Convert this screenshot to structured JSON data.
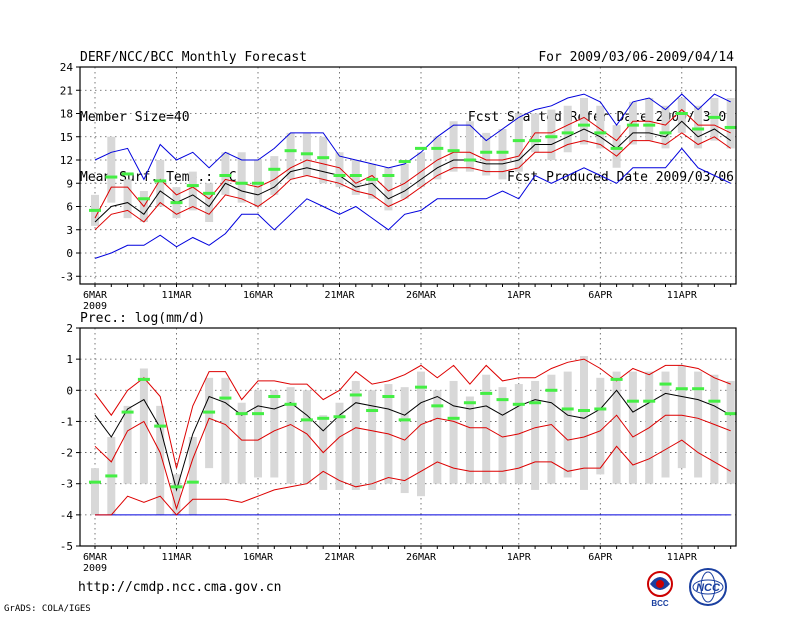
{
  "header": {
    "title": "DERF/NCC/BCC Monthly Forecast",
    "member_size": "Member Size=40",
    "variable": "Mean Surf. Temp.: °C",
    "period": "For 2009/03/06-2009/04/14",
    "started": "Fcst Started Refer Date 2009/03/05",
    "produced": "Fcst Produced Date 2009/03/06"
  },
  "footer": {
    "url": "http://cmdp.ncc.cma.gov.cn",
    "grads": "GrADS: COLA/IGES",
    "logo_bcc": "BCC",
    "logo_ncc": "NCC"
  },
  "colors": {
    "max_min": "#0000dd",
    "mean": "#000000",
    "spread": "#dd0000",
    "box": "#d8d8d8",
    "median": "#44ee44",
    "grid": "#555555"
  },
  "chart_data": [
    {
      "type": "line",
      "title": "Mean Surf. Temp.: °C",
      "ylim": [
        -4,
        24
      ],
      "yticks": [
        "24",
        "21",
        "18",
        "15",
        "12",
        "9",
        "6",
        "3",
        "0",
        "-3"
      ],
      "ytick_values": [
        24,
        21,
        18,
        15,
        12,
        9,
        6,
        3,
        0,
        -3
      ],
      "xtick_labels": [
        "6MAR",
        "11MAR",
        "16MAR",
        "21MAR",
        "26MAR",
        "1APR",
        "6APR",
        "11APR"
      ],
      "xtick_days": [
        0,
        5,
        10,
        15,
        20,
        26,
        31,
        36
      ],
      "year_label": "2009",
      "series": [
        {
          "name": "max",
          "values": [
            -0.7,
            0,
            1,
            1,
            2.3,
            0.8,
            2,
            1,
            2.5,
            5,
            5,
            3,
            5,
            7,
            6,
            5,
            6,
            4.5,
            3,
            5,
            5.5,
            7,
            7,
            7,
            7,
            8,
            7,
            10,
            9,
            10,
            11,
            10,
            9,
            11,
            11,
            11,
            13.5,
            11,
            10,
            9
          ]
        },
        {
          "name": "upper",
          "values": [
            4.5,
            8.5,
            8.5,
            6,
            9.5,
            7.5,
            8.5,
            7,
            9.5,
            9,
            8.5,
            9.5,
            11,
            12,
            11.5,
            11,
            9,
            10,
            8,
            9,
            10.5,
            12,
            13,
            13,
            12,
            12,
            12.5,
            15.5,
            15.5,
            16.5,
            17.5,
            16,
            14.5,
            17,
            17,
            16.5,
            18.5,
            16.5,
            16.5,
            15.5
          ]
        },
        {
          "name": "mean",
          "values": [
            4,
            6,
            6.5,
            5,
            8,
            6.5,
            7.5,
            6,
            9,
            8,
            7.5,
            8.5,
            10.5,
            11,
            10.5,
            10,
            8.5,
            9,
            7,
            8,
            9.5,
            11,
            12,
            12,
            11.5,
            11.5,
            12,
            14,
            14,
            15,
            16,
            15,
            13.5,
            15.5,
            15.5,
            15,
            17,
            15,
            16,
            14.5
          ]
        },
        {
          "name": "lower",
          "values": [
            3,
            5,
            5.5,
            4,
            6.5,
            5,
            6,
            5,
            7.5,
            7,
            6,
            7.5,
            9.5,
            10,
            9.5,
            9,
            8,
            7.5,
            6,
            7,
            8.5,
            10,
            11,
            11,
            10.5,
            10.5,
            11,
            13,
            13,
            14,
            14.5,
            14,
            12.5,
            14.5,
            14.5,
            14,
            15.5,
            14,
            15,
            13.5
          ]
        },
        {
          "name": "min",
          "values": [
            12,
            13,
            13.5,
            9.5,
            14,
            12,
            13,
            11,
            13,
            12,
            12,
            13.5,
            15.5,
            15.5,
            15.5,
            12.5,
            12,
            11.5,
            11,
            11.5,
            13,
            15,
            16.5,
            16.5,
            14.5,
            16,
            17.5,
            18.5,
            19,
            20,
            20.5,
            19.5,
            16.5,
            19.5,
            20,
            18.5,
            20.5,
            18.5,
            20.5,
            19.5
          ]
        }
      ],
      "median": [
        5.5,
        9.8,
        10.2,
        7,
        9.3,
        6.5,
        8.7,
        7.7,
        10,
        9,
        9,
        10.8,
        13.2,
        12.8,
        12.3,
        10,
        10,
        9.5,
        10,
        11.8,
        13.5,
        13.5,
        13.2,
        12,
        13,
        13,
        14.5,
        14.5,
        15,
        15.5,
        16.5,
        15.5,
        13.5,
        16.5,
        16.5,
        15.5,
        18,
        16,
        17.5,
        16.2
      ],
      "box_low": [
        3.5,
        6.5,
        4.5,
        4,
        6,
        4.5,
        5.5,
        4,
        7.5,
        6.5,
        6,
        7.5,
        9.5,
        10,
        9,
        8.5,
        7.5,
        7,
        5.5,
        7,
        8.5,
        9.5,
        10.5,
        10.5,
        10,
        9.5,
        10.5,
        13,
        12,
        13,
        14,
        13.5,
        11,
        14,
        14.5,
        13.5,
        15.5,
        13.5,
        14.5,
        13.5
      ],
      "box_high": [
        7.5,
        15,
        9.5,
        8,
        12,
        8.5,
        10.5,
        9,
        13,
        13,
        12,
        12.5,
        15.5,
        15.5,
        15,
        13,
        12,
        11.5,
        11,
        11.5,
        13,
        15,
        17,
        17,
        15.5,
        16,
        18,
        18,
        18.5,
        19,
        20,
        19,
        16.5,
        19.5,
        20,
        19,
        20,
        19,
        20,
        20
      ]
    },
    {
      "type": "line",
      "title": "Prec.: log(mm/d)",
      "ylim": [
        -5,
        2
      ],
      "yticks": [
        "2",
        "1",
        "0",
        "-1",
        "-2",
        "-3",
        "-4",
        "-5"
      ],
      "ytick_values": [
        2,
        1,
        0,
        -1,
        -2,
        -3,
        -4,
        -5
      ],
      "xtick_labels": [
        "6MAR",
        "11MAR",
        "16MAR",
        "21MAR",
        "26MAR",
        "1APR",
        "6APR",
        "11APR"
      ],
      "xtick_days": [
        0,
        5,
        10,
        15,
        20,
        26,
        31,
        36
      ],
      "year_label": "2009",
      "floor": -4,
      "series": [
        {
          "name": "upper",
          "values": [
            -0.1,
            -0.8,
            0,
            0.4,
            -0.2,
            -2.5,
            -0.5,
            0.6,
            0.6,
            -0.3,
            0.3,
            0.3,
            0.2,
            0.2,
            -0.3,
            0,
            0.6,
            0.2,
            0.3,
            0.5,
            0.8,
            0.4,
            0.8,
            0.2,
            0.8,
            0.3,
            0.4,
            0.4,
            0.7,
            0.9,
            1,
            0.7,
            0.3,
            0.7,
            0.5,
            0.8,
            0.8,
            0.7,
            0.4,
            0.2
          ]
        },
        {
          "name": "mean",
          "values": [
            -0.8,
            -1.5,
            -0.6,
            -0.3,
            -1.2,
            -3.2,
            -1.4,
            -0.2,
            -0.4,
            -0.8,
            -0.5,
            -0.6,
            -0.4,
            -0.8,
            -1.3,
            -0.8,
            -0.4,
            -0.5,
            -0.6,
            -0.8,
            -0.4,
            -0.2,
            -0.5,
            -0.6,
            -0.5,
            -0.8,
            -0.5,
            -0.3,
            -0.4,
            -0.8,
            -0.9,
            -0.6,
            0,
            -0.7,
            -0.4,
            -0.1,
            -0.2,
            -0.3,
            -0.5,
            -0.8
          ]
        },
        {
          "name": "spread_upper",
          "values": [
            -1.8,
            -2.3,
            -1.3,
            -1,
            -2,
            -3.8,
            -2.2,
            -0.9,
            -1.1,
            -1.6,
            -1.6,
            -1.3,
            -1.1,
            -1.4,
            -2,
            -1.5,
            -1.2,
            -1.3,
            -1.4,
            -1.6,
            -1.1,
            -0.9,
            -1,
            -1.2,
            -1.2,
            -1.5,
            -1.4,
            -1.2,
            -1.1,
            -1.6,
            -1.5,
            -1.3,
            -0.8,
            -1.5,
            -1.2,
            -0.8,
            -0.8,
            -0.9,
            -1.1,
            -1.3
          ]
        },
        {
          "name": "spread_lower",
          "values": [
            -4,
            -4,
            -3.4,
            -3.6,
            -3.4,
            -4,
            -3.5,
            -3.5,
            -3.5,
            -3.6,
            -3.4,
            -3.2,
            -3.1,
            -3,
            -2.6,
            -2.9,
            -3.1,
            -3,
            -2.8,
            -2.9,
            -2.6,
            -2.3,
            -2.5,
            -2.6,
            -2.6,
            -2.6,
            -2.5,
            -2.3,
            -2.3,
            -2.6,
            -2.5,
            -2.5,
            -1.8,
            -2.4,
            -2.2,
            -1.9,
            -1.6,
            -2,
            -2.3,
            -2.6
          ]
        }
      ],
      "median": [
        -2.95,
        -2.75,
        -0.7,
        0.35,
        -1.15,
        -3.1,
        -2.95,
        -0.7,
        -0.25,
        -0.75,
        -0.75,
        -0.2,
        -0.45,
        -0.95,
        -0.9,
        -0.85,
        -0.15,
        -0.65,
        -0.2,
        -0.95,
        0.1,
        -0.5,
        -0.9,
        -0.4,
        -0.1,
        -0.3,
        -0.45,
        -0.4,
        0,
        -0.6,
        -0.65,
        -0.6,
        0.35,
        -0.35,
        -0.35,
        0.2,
        0.05,
        0.05,
        -0.35,
        -0.75
      ],
      "box_low": [
        -4,
        -4,
        -3,
        -3,
        -4,
        -4,
        -4,
        -2.5,
        -3,
        -3,
        -2.8,
        -2.8,
        -3,
        -3,
        -3.2,
        -3.2,
        -3.2,
        -3.2,
        -3,
        -3.3,
        -3.4,
        -3,
        -3,
        -3,
        -3,
        -3,
        -3,
        -3.2,
        -3,
        -2.8,
        -3.2,
        -2.7,
        -3,
        -3,
        -3,
        -2.8,
        -2.5,
        -2.8,
        -3,
        -3
      ],
      "box_high": [
        -2.5,
        -1.5,
        -0.5,
        0.7,
        -0.5,
        -2.7,
        -1.5,
        0.4,
        0.4,
        -0.4,
        0,
        0,
        0.1,
        0,
        -0.8,
        -0.4,
        0.3,
        0,
        0.2,
        0.1,
        0.6,
        0,
        0.3,
        -0.2,
        0.5,
        0.1,
        0.2,
        0.3,
        0.5,
        0.6,
        1.1,
        0.4,
        0.6,
        0.6,
        0.6,
        0.6,
        0.8,
        0.6,
        0.5,
        0.3
      ]
    }
  ]
}
